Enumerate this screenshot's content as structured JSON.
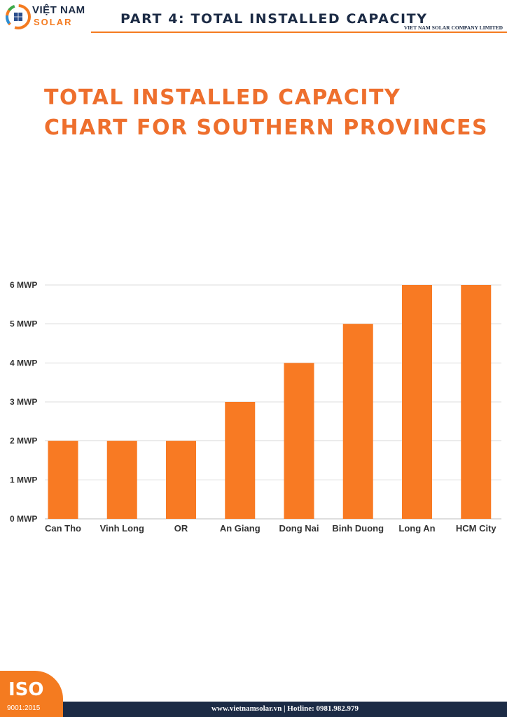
{
  "header": {
    "logo_line1": "VIỆT NAM",
    "logo_line2": "SOLAR",
    "part_title": "PART 4: TOTAL INSTALLED CAPACITY",
    "company": "VIET NAM SOLAR COMPANY LIMITED"
  },
  "title": {
    "line1": "TOTAL INSTALLED CAPACITY",
    "line2": "CHART FOR SOUTHERN PROVINCES"
  },
  "chart_data": {
    "type": "bar",
    "categories": [
      "Can Tho",
      "Vinh Long",
      "OR",
      "An Giang",
      "Dong Nai",
      "Binh Duong",
      "Long An",
      "HCM City"
    ],
    "values": [
      2,
      2,
      2,
      3,
      4,
      5,
      6,
      6
    ],
    "ytick_labels": [
      "0 MWP",
      "1 MWP",
      "2 MWP",
      "3 MWP",
      "4 MWP",
      "5 MWP",
      "6 MWP"
    ],
    "ylim": [
      0,
      6
    ],
    "grid": true,
    "bar_color": "#f87a23"
  },
  "footer": {
    "iso": "ISO",
    "iso_number": "9001:2015",
    "contact": "www.vietnamsolar.vn | Hotline: 0981.982.979"
  },
  "colors": {
    "brand_orange": "#f47b20",
    "navy": "#1c2b45",
    "title_orange": "#ee6f2d"
  }
}
